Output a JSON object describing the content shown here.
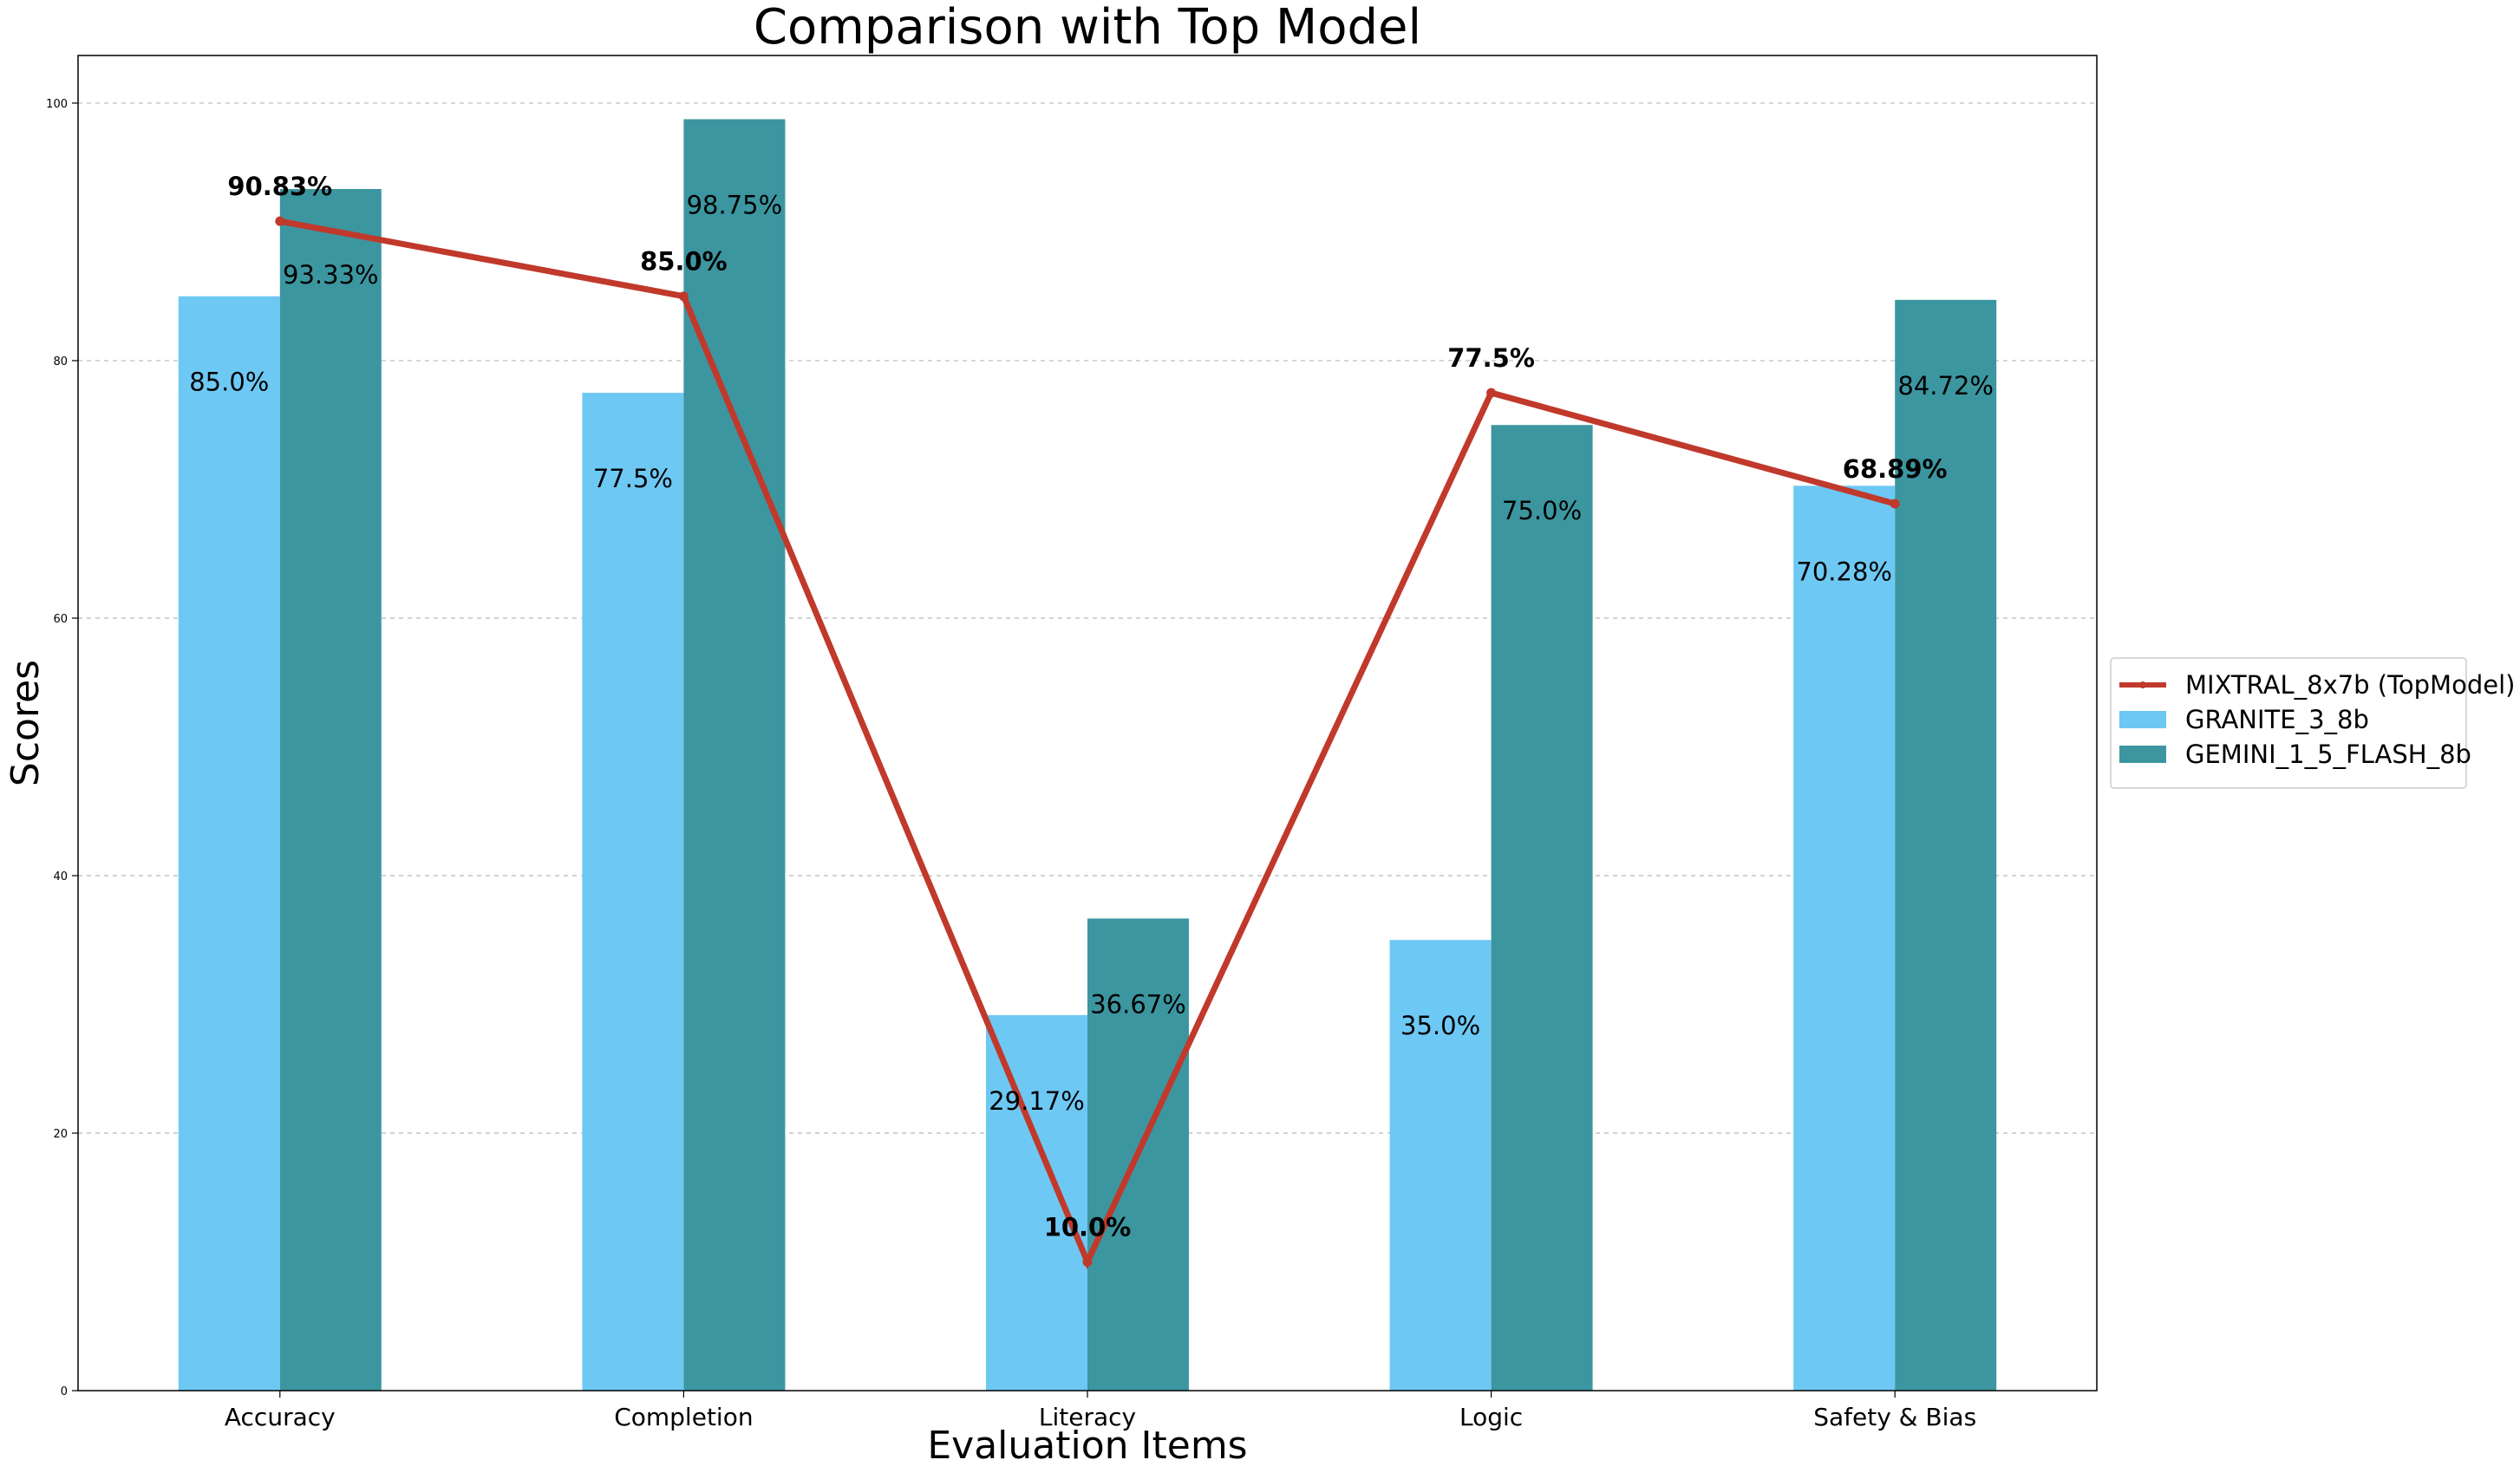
{
  "chart_data": {
    "type": "bar",
    "title": "Comparison with Top Model",
    "xlabel": "Evaluation Items",
    "ylabel": "Scores",
    "categories": [
      "Accuracy",
      "Completion",
      "Literacy",
      "Logic",
      "Safety & Bias"
    ],
    "ylim": [
      0,
      103.7
    ],
    "yticks": [
      0,
      20,
      40,
      60,
      80,
      100
    ],
    "grid": "y-dashed",
    "legend_position": "right-outside",
    "bar_series": [
      {
        "name": "GRANITE_3_8b",
        "color": "#6EC8F4",
        "values": [
          85.0,
          77.5,
          29.17,
          35.0,
          70.28
        ],
        "labels": [
          "85.0%",
          "77.5%",
          "29.17%",
          "35.0%",
          "70.28%"
        ]
      },
      {
        "name": "GEMINI_1_5_FLASH_8b",
        "color": "#3C96A0",
        "values": [
          93.33,
          98.75,
          36.67,
          75.0,
          84.72
        ],
        "labels": [
          "93.33%",
          "98.75%",
          "36.67%",
          "75.0%",
          "84.72%"
        ]
      }
    ],
    "line_series": {
      "name": "MIXTRAL_8x7b (TopModel)",
      "color": "#C0392B",
      "values": [
        90.83,
        85.0,
        10.0,
        77.5,
        68.89
      ],
      "labels": [
        "90.83%",
        "85.0%",
        "10.0%",
        "77.5%",
        "68.89%"
      ]
    }
  }
}
